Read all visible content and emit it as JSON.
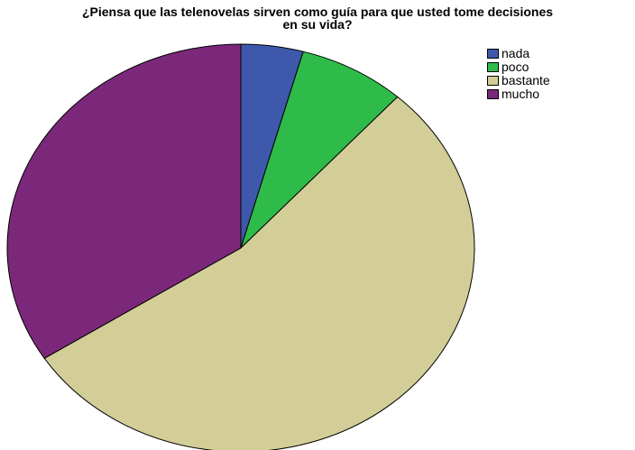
{
  "chart_data": {
    "type": "pie",
    "title": "¿Piensa que las telenovelas sirven como guía para que usted tome decisiones\nen su vida?",
    "categories": [
      "nada",
      "poco",
      "bastante",
      "mucho"
    ],
    "values": [
      4.3,
      7.4,
      54.2,
      34.1
    ],
    "colors": [
      "#3e58ac",
      "#2ebb4a",
      "#d3ce97",
      "#7b287a"
    ],
    "legend_position": "top-right"
  }
}
